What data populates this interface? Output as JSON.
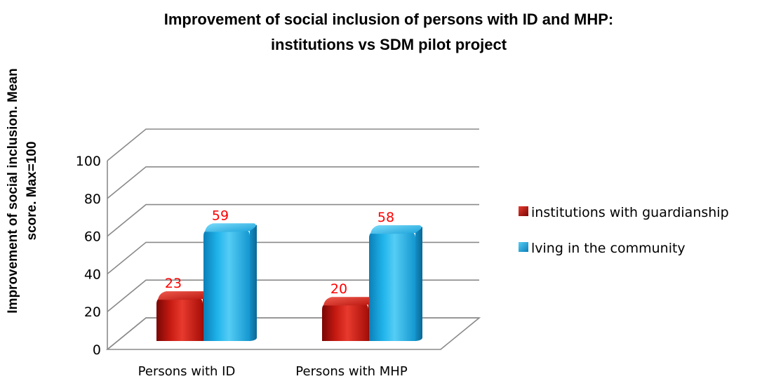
{
  "chart_data": {
    "type": "bar",
    "title": [
      "Improvement of social inclusion of persons with ID and MHP:",
      "institutions vs SDM pilot project"
    ],
    "ylabel": [
      "Improvement of social inclusion. Mean",
      "score. Max=100"
    ],
    "xlabel": "",
    "categories": [
      "Persons with ID",
      "Persons with MHP"
    ],
    "series": [
      {
        "name": "institutions with guardianship",
        "values": [
          23,
          20
        ],
        "color": "#c0150e"
      },
      {
        "name": "lving in the community",
        "values": [
          59,
          58
        ],
        "color": "#18a7e0"
      }
    ],
    "ylim": [
      0,
      100
    ],
    "yticks": [
      "0",
      "20",
      "40",
      "60",
      "80",
      "100"
    ],
    "grid": true,
    "legend_position": "right",
    "data_label_color": "#ff0000",
    "style": "3d-cylinder"
  }
}
